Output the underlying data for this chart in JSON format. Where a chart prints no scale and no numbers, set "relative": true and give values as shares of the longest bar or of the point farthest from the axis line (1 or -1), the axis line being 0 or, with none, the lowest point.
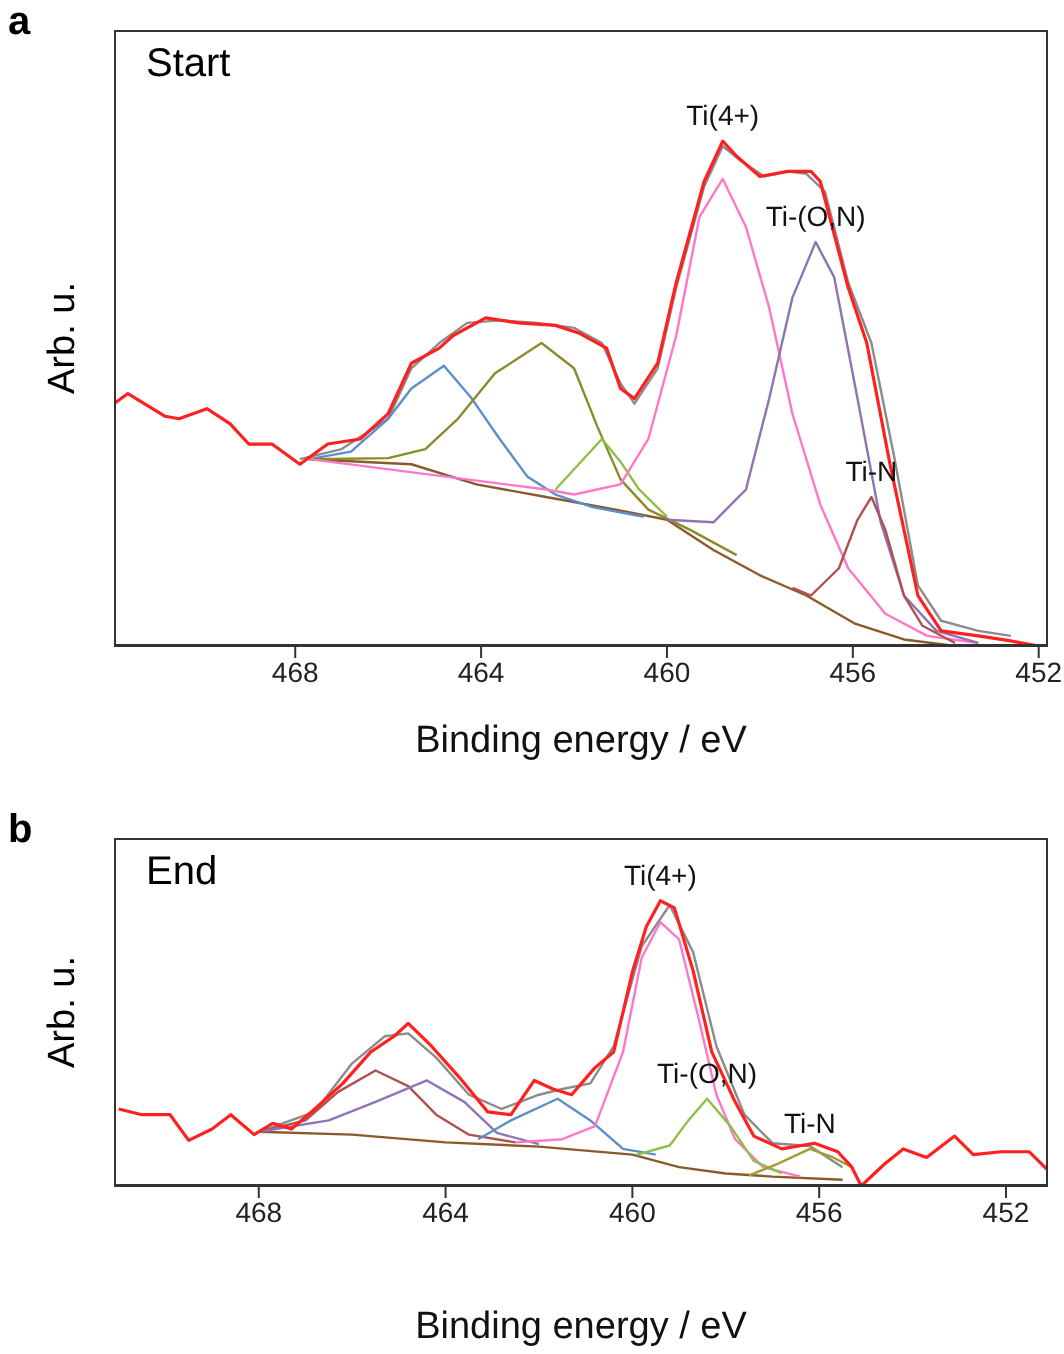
{
  "chart_data": [
    {
      "type": "line",
      "title": "a",
      "xlabel": "Binding energy / eV",
      "ylabel": "Arb. u.",
      "relative": true,
      "tick_labels": "x",
      "xlim": [
        471.9,
        451.8
      ],
      "xticks": [
        468,
        464,
        460,
        456,
        452
      ],
      "annotations": [
        "Start",
        {
          "text": "Ti(4+)",
          "x": 458.8,
          "y": 1.0
        },
        {
          "text": "Ti-(O,N)",
          "x": 456.8,
          "y": 0.8
        },
        {
          "text": "Ti-N",
          "x": 455.6,
          "y": 0.295
        }
      ],
      "series": [
        {
          "color": "#8c8c8c",
          "x": [
            467.9,
            467.0,
            466.0,
            465.5,
            464.9,
            464.3,
            463.6,
            462.8,
            462.0,
            461.4,
            461.0,
            460.7,
            460.2,
            459.8,
            459.2,
            458.8,
            458.4,
            457.9,
            457.4,
            457.0,
            456.6,
            456.1,
            455.6,
            455.1,
            454.6,
            454.1,
            453.3,
            452.6
          ],
          "values": [
            0.37,
            0.39,
            0.45,
            0.55,
            0.6,
            0.64,
            0.645,
            0.64,
            0.63,
            0.6,
            0.52,
            0.48,
            0.55,
            0.71,
            0.91,
            0.99,
            0.96,
            0.93,
            0.94,
            0.935,
            0.9,
            0.72,
            0.6,
            0.37,
            0.12,
            0.05,
            0.03,
            0.02
          ]
        },
        {
          "color": "#8b5a2b",
          "x": [
            467.7,
            465.5,
            464.1,
            462.6,
            461.1,
            460.0,
            459.0,
            458.0,
            457.0,
            455.97,
            454.9,
            453.8
          ],
          "values": [
            0.37,
            0.36,
            0.32,
            0.295,
            0.27,
            0.25,
            0.19,
            0.14,
            0.1,
            0.045,
            0.013,
            0.0
          ]
        },
        {
          "color": "#5b8fc9",
          "x": [
            467.7,
            466.8,
            466.0,
            465.5,
            464.8,
            464.2,
            463.6,
            463.0,
            462.4,
            461.6,
            460.5
          ],
          "values": [
            0.37,
            0.385,
            0.45,
            0.51,
            0.555,
            0.49,
            0.41,
            0.335,
            0.3,
            0.275,
            0.256
          ]
        },
        {
          "color": "#8b8b2a",
          "x": [
            467.7,
            466.0,
            465.2,
            464.5,
            463.7,
            462.7,
            462.0,
            461.5,
            461.0,
            460.4,
            459.5,
            458.5
          ],
          "values": [
            0.37,
            0.372,
            0.39,
            0.45,
            0.54,
            0.6,
            0.55,
            0.435,
            0.33,
            0.27,
            0.23,
            0.18
          ]
        },
        {
          "color": "#8fbf4a",
          "x": [
            462.4,
            461.9,
            461.4,
            461.0,
            460.6,
            460.0
          ],
          "values": [
            0.31,
            0.36,
            0.41,
            0.365,
            0.31,
            0.256
          ]
        },
        {
          "color": "#ff77c8",
          "x": [
            467.7,
            462.6,
            462.0,
            461.0,
            460.4,
            459.8,
            459.3,
            458.8,
            458.3,
            457.8,
            457.3,
            456.7,
            456.1,
            455.3,
            454.4,
            453.3
          ],
          "values": [
            0.37,
            0.31,
            0.3,
            0.32,
            0.41,
            0.615,
            0.85,
            0.925,
            0.83,
            0.67,
            0.46,
            0.28,
            0.154,
            0.064,
            0.02,
            0.006
          ]
        },
        {
          "color": "#8f74b5",
          "x": [
            460.0,
            459.0,
            458.3,
            457.8,
            457.3,
            456.8,
            456.4,
            455.9,
            455.4,
            454.9,
            454.2,
            453.3
          ],
          "values": [
            0.25,
            0.245,
            0.31,
            0.49,
            0.69,
            0.8,
            0.73,
            0.49,
            0.245,
            0.1,
            0.03,
            0.006
          ]
        },
        {
          "color": "#b05050",
          "x": [
            457.3,
            456.9,
            456.3,
            455.9,
            455.6,
            455.3,
            454.9,
            454.5,
            453.8
          ],
          "values": [
            0.115,
            0.1,
            0.154,
            0.25,
            0.295,
            0.23,
            0.1,
            0.04,
            0.006
          ]
        },
        {
          "color": "#ff2020",
          "x": [
            471.9,
            471.6,
            470.8,
            470.5,
            469.9,
            469.4,
            469.0,
            468.5,
            467.9,
            467.3,
            466.6,
            466.0,
            465.5,
            464.9,
            464.6,
            463.9,
            463.2,
            462.4,
            461.9,
            461.3,
            461.0,
            460.7,
            460.2,
            459.8,
            459.2,
            458.8,
            458.5,
            458.0,
            457.4,
            456.9,
            456.7,
            456.1,
            455.7,
            455.2,
            454.6,
            454.1,
            453.3,
            452.6,
            452.0
          ],
          "values": [
            0.48,
            0.5,
            0.455,
            0.45,
            0.47,
            0.44,
            0.4,
            0.4,
            0.36,
            0.4,
            0.41,
            0.46,
            0.56,
            0.59,
            0.615,
            0.65,
            0.64,
            0.635,
            0.62,
            0.59,
            0.51,
            0.49,
            0.56,
            0.72,
            0.92,
            1.0,
            0.97,
            0.93,
            0.94,
            0.94,
            0.92,
            0.71,
            0.6,
            0.36,
            0.1,
            0.03,
            0.02,
            0.01,
            0.0
          ]
        }
      ]
    },
    {
      "type": "line",
      "title": "b",
      "xlabel": "Binding energy / eV",
      "ylabel": "Arb. u.",
      "relative": true,
      "tick_labels": "x",
      "xlim": [
        471.1,
        451.1
      ],
      "xticks": [
        468,
        464,
        460,
        456,
        452
      ],
      "annotations": [
        "End",
        {
          "text": "Ti(4+)",
          "x": 459.4,
          "y": 1.0
        },
        {
          "text": "Ti-(O,N)",
          "x": 458.4,
          "y": 0.306
        },
        {
          "text": "Ti-N",
          "x": 456.2,
          "y": 0.13
        }
      ],
      "series": [
        {
          "color": "#8c8c8c",
          "x": [
            468.0,
            466.8,
            466.0,
            465.3,
            464.8,
            464.2,
            463.5,
            462.8,
            462.0,
            461.5,
            460.9,
            460.4,
            459.8,
            459.2,
            458.7,
            458.2,
            457.6,
            457.0,
            456.2,
            455.5
          ],
          "values": [
            0.19,
            0.26,
            0.43,
            0.525,
            0.535,
            0.45,
            0.32,
            0.27,
            0.32,
            0.34,
            0.36,
            0.49,
            0.84,
            0.985,
            0.82,
            0.49,
            0.25,
            0.15,
            0.14,
            0.066
          ]
        },
        {
          "color": "#8b5a2b",
          "x": [
            468.0,
            466.0,
            464.0,
            462.0,
            460.0,
            459.0,
            458.0,
            457.0,
            455.5
          ],
          "values": [
            0.19,
            0.18,
            0.153,
            0.138,
            0.11,
            0.066,
            0.044,
            0.033,
            0.022
          ]
        },
        {
          "color": "#b05050",
          "x": [
            468.0,
            467.0,
            466.3,
            465.5,
            464.8,
            464.2,
            463.5,
            462.5
          ],
          "values": [
            0.19,
            0.23,
            0.33,
            0.405,
            0.35,
            0.25,
            0.18,
            0.153
          ]
        },
        {
          "color": "#8f74b5",
          "x": [
            468.0,
            466.5,
            465.5,
            464.4,
            463.6,
            462.9,
            462.0
          ],
          "values": [
            0.19,
            0.23,
            0.295,
            0.37,
            0.295,
            0.186,
            0.147
          ]
        },
        {
          "color": "#5b8fc9",
          "x": [
            463.3,
            462.6,
            461.6,
            460.9,
            460.2,
            459.5
          ],
          "values": [
            0.164,
            0.23,
            0.306,
            0.23,
            0.13,
            0.11
          ]
        },
        {
          "color": "#ff77c8",
          "x": [
            462.5,
            461.5,
            460.8,
            460.2,
            459.8,
            459.4,
            459.0,
            458.6,
            458.2,
            457.8,
            457.2,
            456.4
          ],
          "values": [
            0.153,
            0.164,
            0.21,
            0.47,
            0.8,
            0.925,
            0.865,
            0.6,
            0.32,
            0.164,
            0.066,
            0.033
          ]
        },
        {
          "color": "#8fbf4a",
          "x": [
            459.9,
            459.2,
            458.8,
            458.4,
            457.9,
            457.4,
            456.8
          ],
          "values": [
            0.11,
            0.142,
            0.23,
            0.306,
            0.21,
            0.088,
            0.044
          ]
        },
        {
          "color": "#a0a030",
          "x": [
            457.5,
            456.9,
            456.2,
            455.7,
            455.3
          ],
          "values": [
            0.037,
            0.077,
            0.13,
            0.1,
            0.066
          ]
        },
        {
          "color": "#ff2020",
          "x": [
            471.0,
            470.5,
            469.9,
            469.5,
            469.0,
            468.6,
            468.1,
            467.7,
            467.3,
            466.8,
            466.2,
            465.6,
            465.1,
            464.8,
            464.3,
            463.7,
            463.1,
            462.6,
            462.1,
            461.7,
            461.3,
            460.8,
            460.4,
            460.0,
            459.7,
            459.4,
            459.1,
            458.7,
            458.3,
            457.8,
            457.4,
            456.8,
            456.1,
            455.6,
            455.3,
            455.1,
            454.6,
            454.2,
            453.7,
            453.1,
            452.7,
            452.1,
            451.5,
            451.1
          ],
          "values": [
            0.27,
            0.25,
            0.25,
            0.16,
            0.2,
            0.25,
            0.18,
            0.22,
            0.2,
            0.27,
            0.36,
            0.47,
            0.525,
            0.57,
            0.49,
            0.38,
            0.26,
            0.25,
            0.37,
            0.34,
            0.32,
            0.415,
            0.47,
            0.75,
            0.91,
            1.0,
            0.975,
            0.755,
            0.47,
            0.295,
            0.175,
            0.13,
            0.15,
            0.12,
            0.066,
            0.0,
            0.077,
            0.13,
            0.1,
            0.175,
            0.11,
            0.12,
            0.12,
            0.055
          ]
        }
      ]
    }
  ]
}
